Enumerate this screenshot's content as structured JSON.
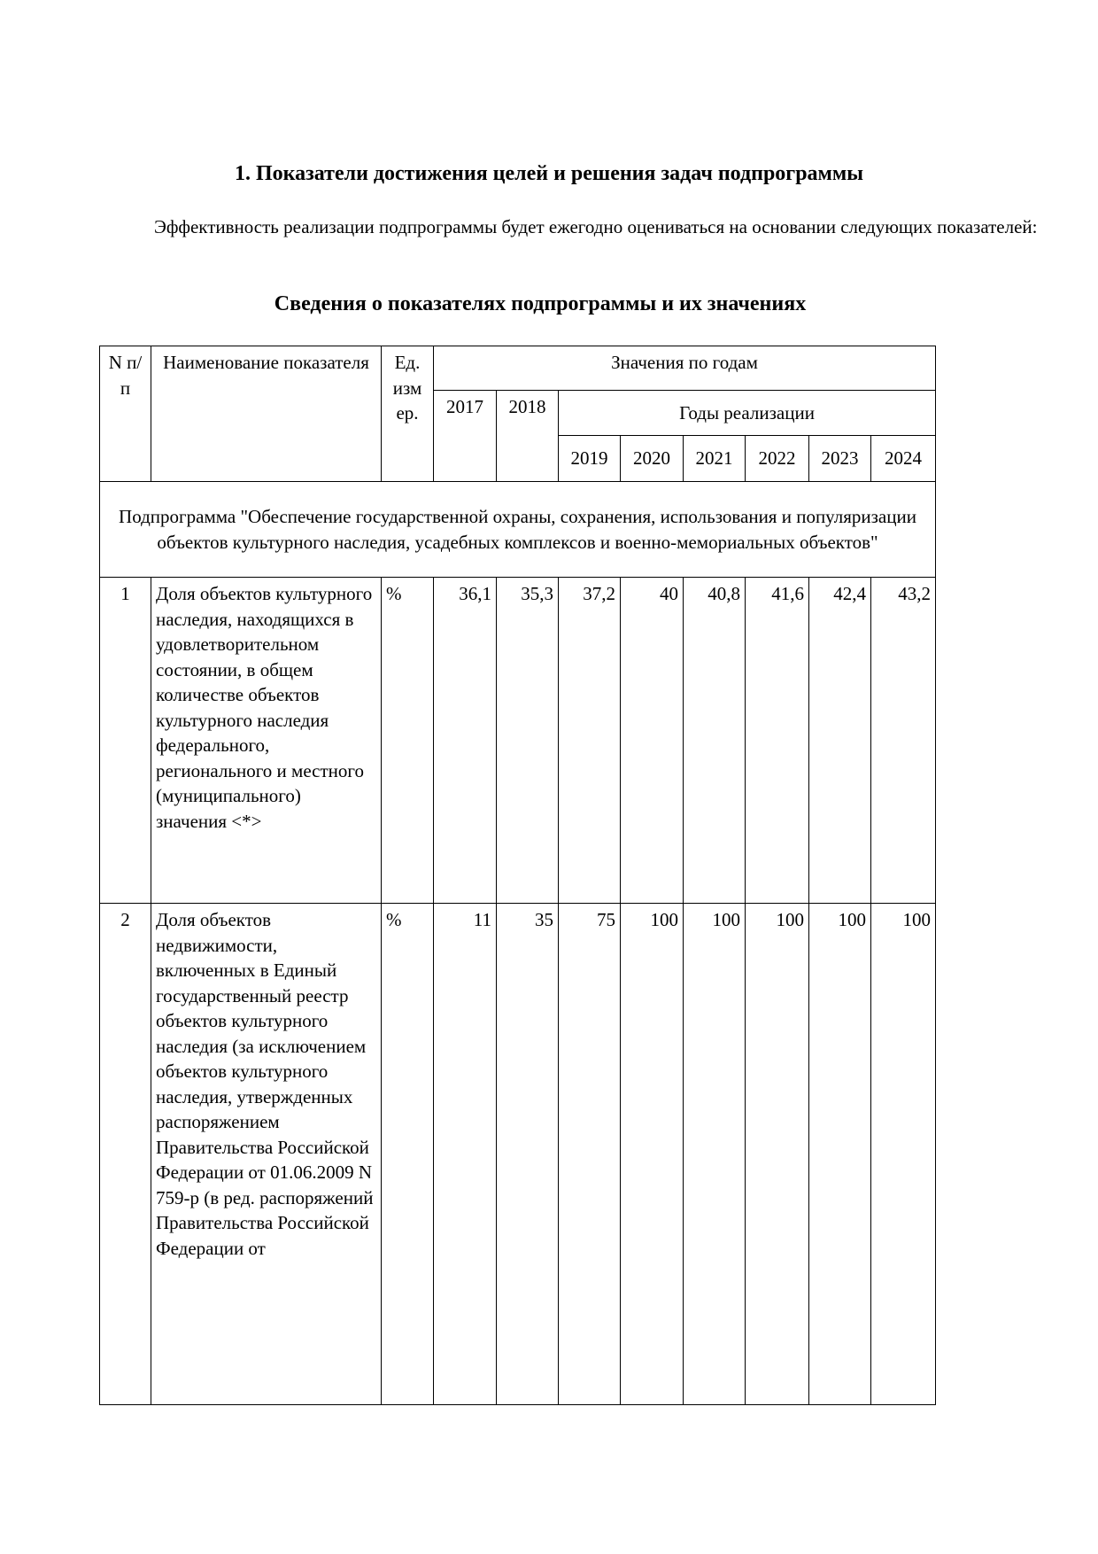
{
  "title": "1. Показатели достижения целей и решения задач подпрограммы",
  "paragraph": "Эффективность реализации подпрограммы будет ежегодно оцениваться на основании следующих показателей:",
  "subtitle": "Сведения о показателях подпрограммы и их значениях",
  "table": {
    "header": {
      "num": "N п/п",
      "name": "Наименование показателя",
      "unit": "Ед. изм ер.",
      "values_by_year": "Значения по годам",
      "years_impl": "Годы реализации",
      "years": [
        "2017",
        "2018",
        "2019",
        "2020",
        "2021",
        "2022",
        "2023",
        "2024"
      ]
    },
    "section": "Подпрограмма \"Обеспечение государственной охраны, сохранения, использования и популяризации объектов культурного наследия, усадебных комплексов и военно-мемориальных объектов\"",
    "rows": [
      {
        "num": "1",
        "name": "Доля объектов культурного наследия, находящихся в удовлетворительном состоянии, в общем количестве объектов культурного наследия федерального, регионального и местного (муниципального) значения <*>",
        "unit": "%",
        "values": [
          "36,1",
          "35,3",
          "37,2",
          "40",
          "40,8",
          "41,6",
          "42,4",
          "43,2"
        ]
      },
      {
        "num": "2",
        "name": "Доля объектов недвижимости, включенных в Единый государственный реестр объектов культурного наследия (за исключением объектов культурного наследия, утвержденных распоряжением Правительства Российской Федерации от 01.06.2009 N 759-р (в ред. распоряжений Правительства Российской Федерации от",
        "unit": "%",
        "values": [
          "11",
          "35",
          "75",
          "100",
          "100",
          "100",
          "100",
          "100"
        ]
      }
    ]
  }
}
